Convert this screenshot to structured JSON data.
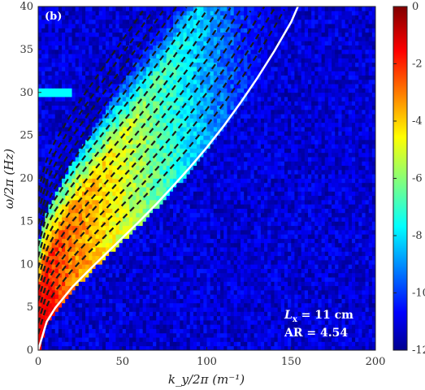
{
  "chart_data": {
    "type": "heatmap",
    "panel_label": "(b)",
    "xlabel": "k_y/2π (m⁻¹)",
    "ylabel": "ω/2π (Hz)",
    "xlim": [
      0,
      200
    ],
    "ylim": [
      0,
      40
    ],
    "x_ticks": [
      0,
      50,
      100,
      150,
      200
    ],
    "y_ticks": [
      0,
      5,
      10,
      15,
      20,
      25,
      30,
      35,
      40
    ],
    "colorbar": {
      "range": [
        -12,
        0
      ],
      "ticks": [
        0,
        -2,
        -4,
        -6,
        -8,
        -10,
        -12
      ],
      "colormap": "jet"
    },
    "annotations": [
      {
        "text_main": "L",
        "text_sub": "x",
        "text_rest": " = 11 cm"
      },
      {
        "text": "AR = 4.54"
      }
    ],
    "series": [
      {
        "style": "solid-white",
        "x": [
          0,
          5,
          10,
          20,
          30,
          40,
          50,
          60,
          70,
          80,
          90,
          100,
          110,
          120,
          130,
          140,
          150,
          154
        ],
        "y": [
          0,
          3.3,
          4.9,
          7.3,
          9.3,
          11.2,
          13.1,
          15.0,
          17.0,
          19.1,
          21.3,
          23.6,
          26.1,
          28.8,
          31.7,
          34.8,
          38.2,
          40
        ]
      }
    ],
    "dispersion_branches_count": 14,
    "background_noise_level": -11,
    "horizontal_line_hz": 30
  }
}
